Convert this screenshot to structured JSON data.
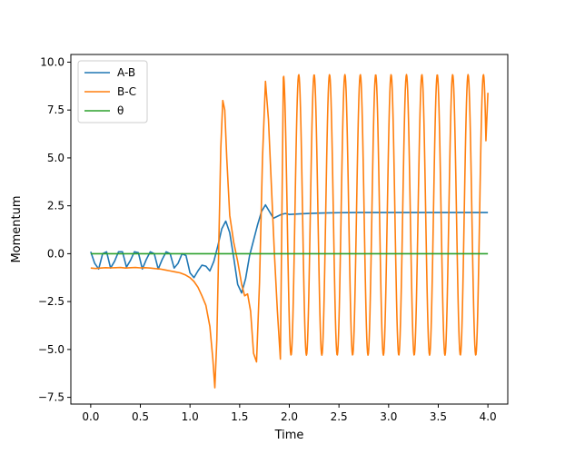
{
  "chart_data": {
    "type": "line",
    "title": "",
    "xlabel": "Time",
    "ylabel": "Momentum",
    "xlim": [
      -0.2,
      4.2
    ],
    "ylim": [
      -7.85,
      10.4
    ],
    "xticks": [
      0.0,
      0.5,
      1.0,
      1.5,
      2.0,
      2.5,
      3.0,
      3.5,
      4.0
    ],
    "xtick_labels": [
      "0.0",
      "0.5",
      "1.0",
      "1.5",
      "2.0",
      "2.5",
      "3.0",
      "3.5",
      "4.0"
    ],
    "yticks": [
      -7.5,
      -5.0,
      -2.5,
      0.0,
      2.5,
      5.0,
      7.5,
      10.0
    ],
    "ytick_labels": [
      "−7.5",
      "−5.0",
      "−2.5",
      "0.0",
      "2.5",
      "5.0",
      "7.5",
      "10.0"
    ],
    "grid": false,
    "legend_position": "top-left",
    "series": [
      {
        "name": "A-B",
        "color": "#1f77b4",
        "x": [
          0.0,
          0.04,
          0.08,
          0.12,
          0.16,
          0.2,
          0.24,
          0.28,
          0.32,
          0.36,
          0.4,
          0.44,
          0.48,
          0.52,
          0.56,
          0.6,
          0.64,
          0.68,
          0.72,
          0.76,
          0.8,
          0.84,
          0.88,
          0.92,
          0.96,
          1.0,
          1.04,
          1.08,
          1.12,
          1.16,
          1.2,
          1.24,
          1.28,
          1.32,
          1.36,
          1.4,
          1.44,
          1.48,
          1.52,
          1.56,
          1.6,
          1.64,
          1.68,
          1.72,
          1.76,
          1.8,
          1.84,
          1.88,
          1.92,
          1.96,
          2.0,
          2.1,
          2.2,
          2.3,
          2.4,
          2.5,
          2.7,
          3.0,
          3.5,
          4.0
        ],
        "y": [
          0.1,
          -0.5,
          -0.8,
          0.0,
          0.1,
          -0.75,
          -0.4,
          0.1,
          0.1,
          -0.7,
          -0.35,
          0.1,
          0.05,
          -0.8,
          -0.3,
          0.1,
          0.0,
          -0.8,
          -0.3,
          0.1,
          0.0,
          -0.75,
          -0.5,
          0.0,
          -0.1,
          -1.0,
          -1.25,
          -0.9,
          -0.6,
          -0.65,
          -0.9,
          -0.4,
          0.4,
          1.3,
          1.7,
          1.1,
          -0.2,
          -1.6,
          -2.05,
          -1.3,
          -0.1,
          0.7,
          1.5,
          2.2,
          2.55,
          2.2,
          1.85,
          1.95,
          2.05,
          2.1,
          2.05,
          2.08,
          2.1,
          2.12,
          2.13,
          2.14,
          2.15,
          2.15,
          2.15,
          2.15
        ]
      },
      {
        "name": "B-C",
        "color": "#ff7f0e",
        "x": [
          0.0,
          0.05,
          0.1,
          0.15,
          0.2,
          0.25,
          0.3,
          0.35,
          0.4,
          0.45,
          0.5,
          0.55,
          0.6,
          0.65,
          0.7,
          0.75,
          0.8,
          0.85,
          0.9,
          0.95,
          1.0,
          1.04,
          1.08,
          1.12,
          1.16,
          1.2,
          1.23,
          1.25,
          1.27,
          1.29,
          1.31,
          1.33,
          1.35,
          1.37,
          1.4,
          1.44,
          1.48,
          1.52,
          1.55,
          1.58,
          1.61,
          1.64,
          1.67,
          1.7,
          1.73,
          1.76,
          1.79,
          1.82,
          1.85,
          1.88,
          1.91,
          1.94
        ],
        "y": [
          -0.75,
          -0.77,
          -0.75,
          -0.73,
          -0.74,
          -0.73,
          -0.72,
          -0.75,
          -0.73,
          -0.72,
          -0.74,
          -0.73,
          -0.75,
          -0.78,
          -0.8,
          -0.85,
          -0.9,
          -0.95,
          -1.0,
          -1.1,
          -1.25,
          -1.45,
          -1.75,
          -2.2,
          -2.7,
          -3.8,
          -5.5,
          -7.0,
          -4.5,
          0.5,
          5.5,
          8.0,
          7.5,
          5.0,
          2.0,
          0.6,
          -0.4,
          -1.6,
          -2.2,
          -2.1,
          -3.0,
          -5.2,
          -5.65,
          -1.5,
          5.0,
          9.0,
          7.0,
          3.5,
          0.0,
          -3.0,
          -5.5,
          9.2
        ],
        "oscillation": {
          "start": 1.94,
          "end": 4.0,
          "period": 0.155,
          "max": 9.35,
          "min": -5.3,
          "end_value": 8.4
        }
      },
      {
        "name": "θ",
        "color": "#2ca02c",
        "x": [
          0.0,
          4.0
        ],
        "y": [
          0.0,
          0.0
        ]
      }
    ]
  }
}
